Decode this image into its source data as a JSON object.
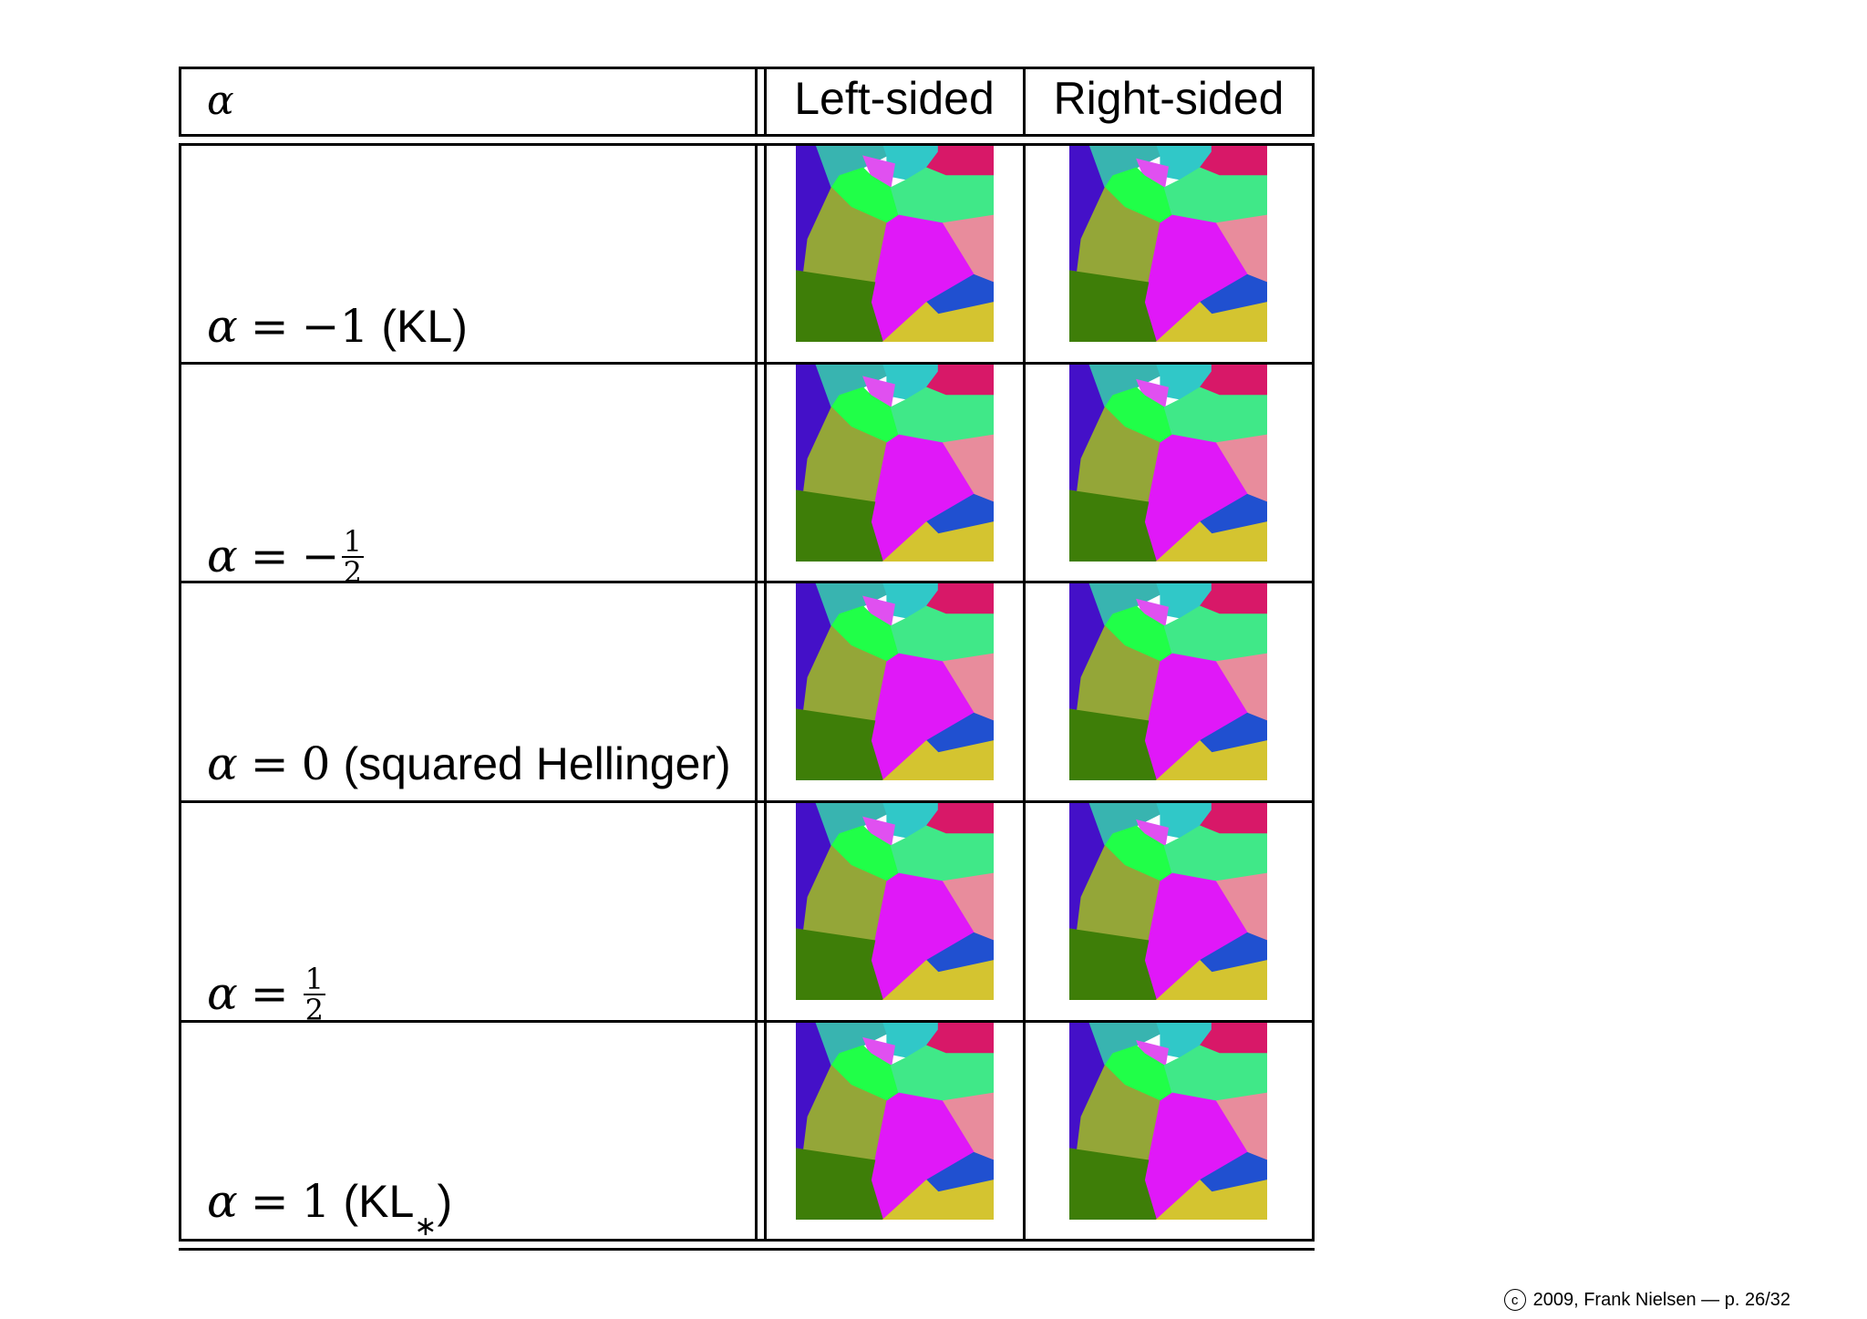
{
  "table": {
    "header": {
      "alpha_symbol": "α",
      "left_label": "Left-sided",
      "right_label": "Right-sided"
    },
    "rows": [
      {
        "lhs": "α",
        "eq": "=",
        "value": "−1",
        "frac_num": "",
        "frac_den": "",
        "suffix": "(KL",
        "suffix_sup": "",
        "suffix_end": ")",
        "left_image": "voronoi-diagram-left-alpha-minus-1",
        "right_image": "voronoi-diagram-right-alpha-minus-1"
      },
      {
        "lhs": "α",
        "eq": "=",
        "value": "−",
        "frac_num": "1",
        "frac_den": "2",
        "suffix": "",
        "suffix_sup": "",
        "suffix_end": "",
        "left_image": "voronoi-diagram-left-alpha-minus-half",
        "right_image": "voronoi-diagram-right-alpha-minus-half"
      },
      {
        "lhs": "α",
        "eq": "=",
        "value": "0",
        "frac_num": "",
        "frac_den": "",
        "suffix": "(squared Hellinger",
        "suffix_sup": "",
        "suffix_end": ")",
        "left_image": "voronoi-diagram-left-alpha-0",
        "right_image": "voronoi-diagram-right-alpha-0"
      },
      {
        "lhs": "α",
        "eq": "=",
        "value": "",
        "frac_num": "1",
        "frac_den": "2",
        "suffix": "",
        "suffix_sup": "",
        "suffix_end": "",
        "left_image": "voronoi-diagram-left-alpha-half",
        "right_image": "voronoi-diagram-right-alpha-half"
      },
      {
        "lhs": "α",
        "eq": "=",
        "value": "1",
        "frac_num": "",
        "frac_den": "",
        "suffix": "(KL",
        "suffix_sup": "∗",
        "suffix_end": ")",
        "left_image": "voronoi-diagram-left-alpha-1",
        "right_image": "voronoi-diagram-right-alpha-1"
      }
    ]
  },
  "cell_colors": {
    "purple": "#4410c8",
    "teal": "#38b4b0",
    "magenta_light": "#e050f0",
    "cyan": "#30c8c8",
    "crimson": "#d81868",
    "green_bright": "#20ff48",
    "mint": "#40e888",
    "olive": "#94a638",
    "pink": "#e88c9c",
    "magenta": "#e018f8",
    "blue": "#2050d0",
    "dark_green": "#3e7e08",
    "yellow": "#d4c430"
  },
  "footer": {
    "copyright_symbol": "c",
    "text": "2009, Frank Nielsen — p. 26/32"
  }
}
